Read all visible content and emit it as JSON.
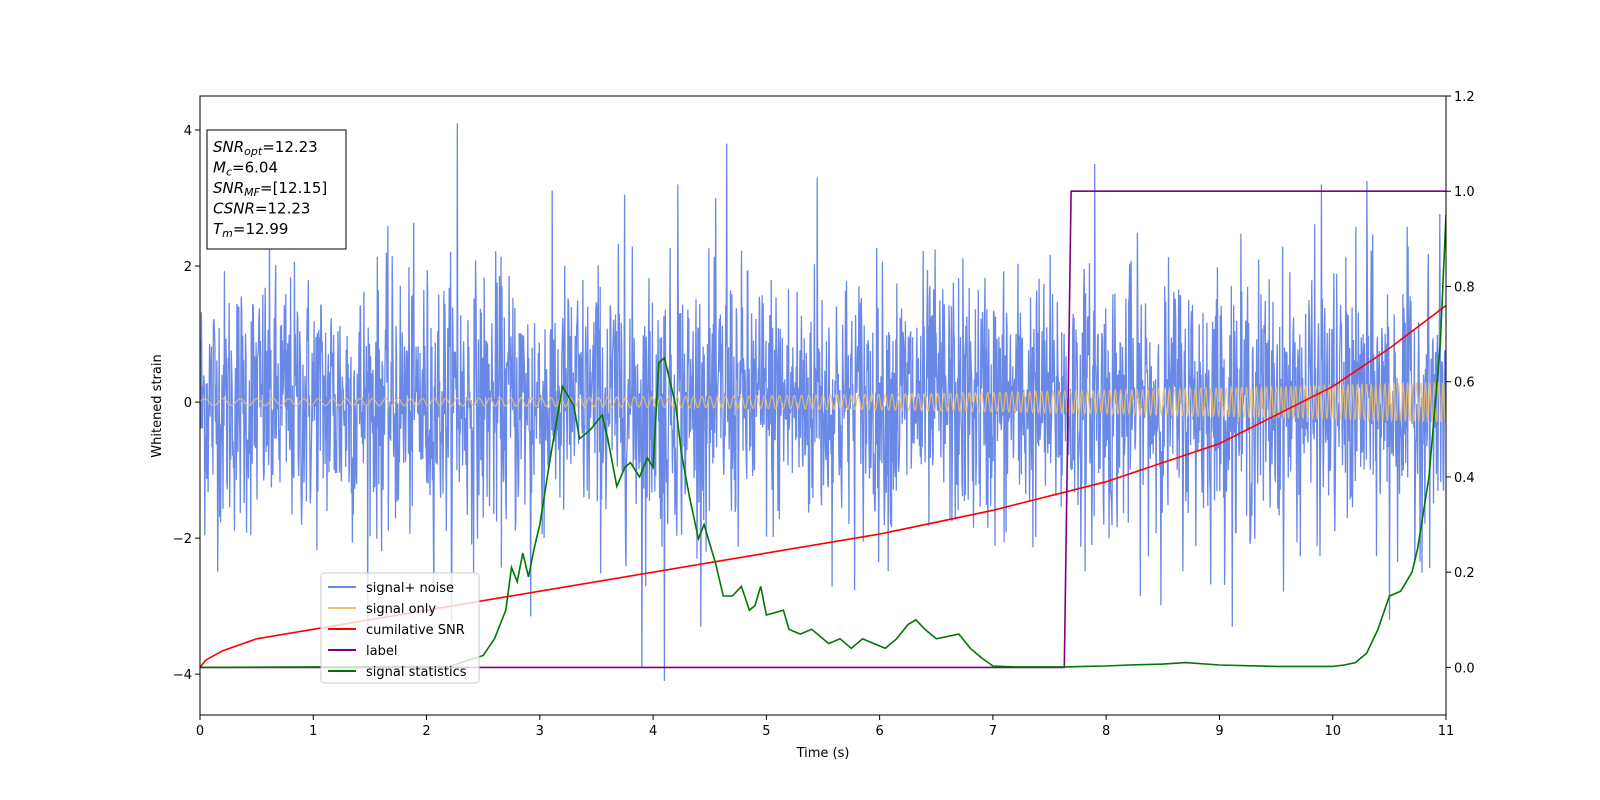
{
  "chart_data": {
    "type": "line",
    "xlabel": "Time (s)",
    "ylabel": "Whitened strain",
    "xlim": [
      0,
      11
    ],
    "ylim": [
      -4.6,
      4.5
    ],
    "ylim_right": [
      -0.1,
      1.2
    ],
    "x_ticks": [
      "0",
      "1",
      "2",
      "3",
      "4",
      "5",
      "6",
      "7",
      "8",
      "9",
      "10",
      "11"
    ],
    "y_ticks": [
      "−4",
      "−2",
      "0",
      "2",
      "4"
    ],
    "y_ticks_right": [
      "0.0",
      "0.2",
      "0.4",
      "0.6",
      "0.8",
      "1.0",
      "1.2"
    ],
    "grid": false,
    "legend_position": "lower-left",
    "series": [
      {
        "name": "signal+ noise",
        "axis": "left",
        "color": "#6a89e6",
        "description_points": "dense noise, amplitude about ±2, peaks up to about 4.1 near t=2.3 and down to about -4.1 near t=4.1"
      },
      {
        "name": "signal only",
        "axis": "left",
        "color": "#f0c070",
        "amplitude_start": 0.05,
        "amplitude_end": 0.3
      },
      {
        "name": "cumilative SNR",
        "axis": "right",
        "color": "#ff0000",
        "x": [
          0,
          0.05,
          0.2,
          0.5,
          1,
          2,
          3,
          4,
          5,
          6,
          7,
          8,
          9,
          10,
          10.5,
          11
        ],
        "y": [
          0.0,
          0.015,
          0.035,
          0.06,
          0.08,
          0.12,
          0.16,
          0.2,
          0.24,
          0.28,
          0.33,
          0.39,
          0.47,
          0.59,
          0.67,
          0.76
        ]
      },
      {
        "name": "label",
        "axis": "right",
        "color": "#800080",
        "x": [
          0,
          7.63,
          7.69,
          11
        ],
        "y": [
          0,
          0,
          1,
          1
        ]
      },
      {
        "name": "signal statistics",
        "axis": "right",
        "color": "#007700",
        "x": [
          0,
          2.2,
          2.5,
          2.6,
          2.7,
          2.75,
          2.8,
          2.85,
          2.9,
          2.95,
          3.0,
          3.1,
          3.2,
          3.3,
          3.35,
          3.45,
          3.55,
          3.6,
          3.68,
          3.75,
          3.8,
          3.88,
          3.95,
          4.0,
          4.05,
          4.1,
          4.15,
          4.2,
          4.25,
          4.32,
          4.4,
          4.45,
          4.5,
          4.55,
          4.62,
          4.7,
          4.78,
          4.85,
          4.9,
          4.95,
          5.0,
          5.15,
          5.2,
          5.3,
          5.4,
          5.55,
          5.65,
          5.75,
          5.85,
          5.95,
          6.05,
          6.15,
          6.25,
          6.32,
          6.4,
          6.5,
          6.7,
          6.8,
          6.9,
          7.0,
          7.2,
          7.5,
          7.63,
          7.8,
          8.0,
          8.2,
          8.5,
          8.7,
          9.0,
          9.5,
          10.0,
          10.1,
          10.2,
          10.3,
          10.4,
          10.5,
          10.6,
          10.7,
          10.75,
          10.85,
          10.95,
          11.0
        ],
        "y": [
          0,
          0.002,
          0.025,
          0.06,
          0.12,
          0.21,
          0.18,
          0.24,
          0.19,
          0.25,
          0.3,
          0.45,
          0.59,
          0.55,
          0.48,
          0.5,
          0.53,
          0.48,
          0.38,
          0.42,
          0.43,
          0.4,
          0.44,
          0.42,
          0.64,
          0.65,
          0.6,
          0.55,
          0.45,
          0.36,
          0.27,
          0.3,
          0.26,
          0.22,
          0.15,
          0.15,
          0.17,
          0.12,
          0.13,
          0.17,
          0.11,
          0.12,
          0.08,
          0.07,
          0.08,
          0.05,
          0.06,
          0.04,
          0.06,
          0.05,
          0.04,
          0.06,
          0.09,
          0.1,
          0.08,
          0.06,
          0.07,
          0.04,
          0.02,
          0.003,
          0.001,
          0.001,
          0.001,
          0.002,
          0.003,
          0.005,
          0.007,
          0.01,
          0.005,
          0.002,
          0.002,
          0.005,
          0.01,
          0.03,
          0.08,
          0.15,
          0.16,
          0.2,
          0.25,
          0.4,
          0.68,
          0.95
        ]
      }
    ],
    "annotation": {
      "lines": [
        {
          "main": "SNR",
          "sub": "opt",
          "value": "=12.23"
        },
        {
          "main": "M",
          "sub": "c",
          "value": "=6.04"
        },
        {
          "main": "SNR",
          "sub": "MF",
          "value": "=[12.15]"
        },
        {
          "main": "CSNR",
          "sub": "",
          "value": "=12.23"
        },
        {
          "main": "T",
          "sub": "m",
          "value": "=12.99"
        }
      ]
    }
  }
}
